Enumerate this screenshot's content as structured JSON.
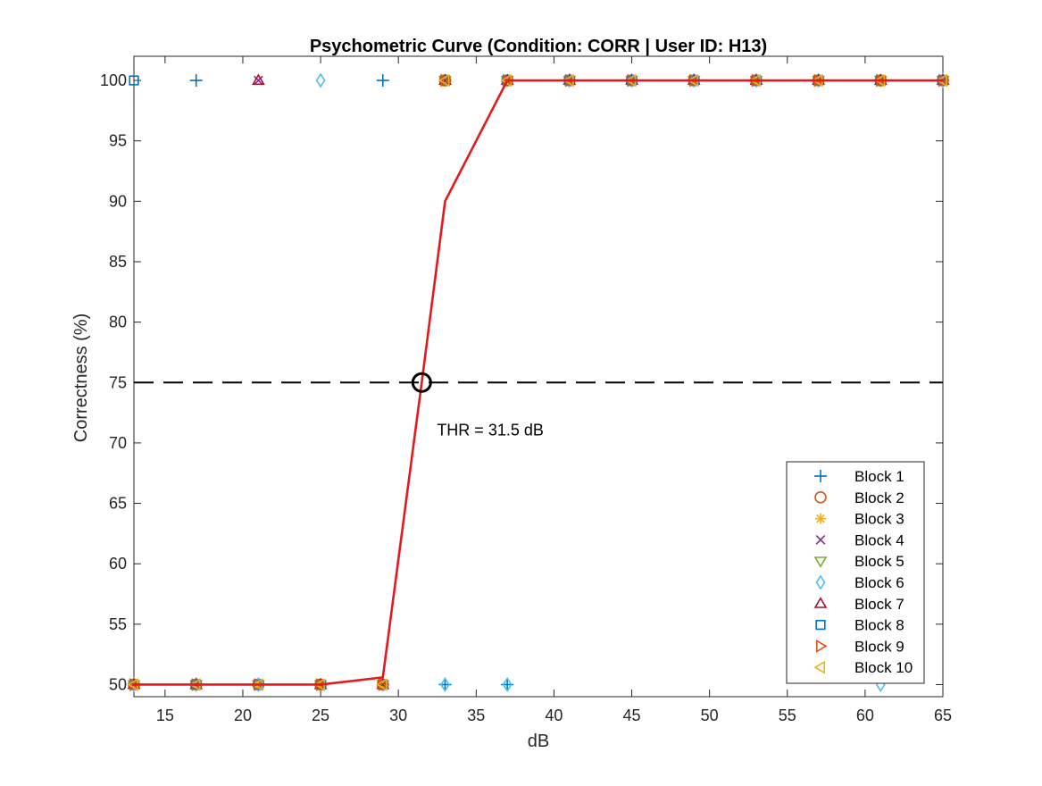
{
  "chart_data": {
    "type": "scatter",
    "title": "Psychometric Curve (Condition: CORR | User ID: H13)",
    "xlabel": "dB",
    "ylabel": "Correctness (%)",
    "xlim": [
      13,
      65
    ],
    "ylim": [
      49,
      102
    ],
    "xticks": [
      15,
      20,
      25,
      30,
      35,
      40,
      45,
      50,
      55,
      60,
      65
    ],
    "yticks": [
      50,
      55,
      60,
      65,
      70,
      75,
      80,
      85,
      90,
      95,
      100
    ],
    "grid": false,
    "legend_position": "bottom-right",
    "threshold": {
      "x": 31.5,
      "y": 75,
      "label": "THR = 31.5 dB",
      "line_color": "#000000"
    },
    "curve": {
      "color": "#e31a1c",
      "x": [
        13,
        17,
        21,
        25,
        29,
        31.5,
        33,
        37,
        41,
        45,
        49,
        53,
        57,
        61,
        65
      ],
      "y": [
        50,
        50,
        50,
        50,
        50.6,
        75,
        90,
        100,
        100,
        100,
        100,
        100,
        100,
        100,
        100
      ]
    },
    "series": [
      {
        "name": "Block 1",
        "marker": "plus",
        "color": "#0072bd",
        "x": [
          13,
          17,
          21,
          25,
          29,
          33,
          37,
          41,
          45,
          49,
          53,
          57,
          61,
          65
        ],
        "y": [
          50,
          100,
          50,
          50,
          100,
          50,
          50,
          100,
          100,
          100,
          100,
          100,
          100,
          100
        ]
      },
      {
        "name": "Block 2",
        "marker": "circle",
        "color": "#d95319",
        "x": [
          13,
          17,
          21,
          25,
          29,
          33,
          37,
          41,
          45,
          49,
          53,
          57,
          61,
          65
        ],
        "y": [
          50,
          50,
          50,
          50,
          50,
          100,
          100,
          100,
          100,
          100,
          100,
          100,
          100,
          100
        ]
      },
      {
        "name": "Block 3",
        "marker": "asterisk",
        "color": "#edb120",
        "x": [
          13,
          17,
          21,
          25,
          29,
          33,
          37,
          41,
          45,
          49,
          53,
          57,
          61,
          65
        ],
        "y": [
          50,
          50,
          50,
          50,
          50,
          100,
          100,
          100,
          100,
          100,
          100,
          100,
          100,
          100
        ]
      },
      {
        "name": "Block 4",
        "marker": "x",
        "color": "#7e2f8e",
        "x": [
          13,
          17,
          21,
          25,
          29,
          33,
          37,
          41,
          45,
          49,
          53,
          57,
          61,
          65
        ],
        "y": [
          50,
          50,
          100,
          50,
          50,
          100,
          100,
          100,
          100,
          100,
          100,
          100,
          100,
          100
        ]
      },
      {
        "name": "Block 5",
        "marker": "triangle-down",
        "color": "#77ac30",
        "x": [
          13,
          17,
          21,
          25,
          29,
          33,
          37,
          41,
          45,
          49,
          53,
          57,
          61,
          65
        ],
        "y": [
          50,
          50,
          50,
          50,
          50,
          100,
          100,
          100,
          100,
          100,
          100,
          100,
          100,
          100
        ]
      },
      {
        "name": "Block 6",
        "marker": "diamond",
        "color": "#4dbeee",
        "x": [
          13,
          17,
          21,
          25,
          29,
          33,
          37,
          41,
          45,
          49,
          53,
          57,
          61,
          65
        ],
        "y": [
          50,
          50,
          50,
          100,
          50,
          50,
          50,
          100,
          100,
          100,
          100,
          100,
          50,
          100
        ]
      },
      {
        "name": "Block 7",
        "marker": "triangle-up",
        "color": "#a2142f",
        "x": [
          13,
          17,
          21,
          25,
          29,
          33,
          37,
          41,
          45,
          49,
          53,
          57,
          61,
          65
        ],
        "y": [
          50,
          50,
          100,
          50,
          50,
          100,
          100,
          100,
          100,
          100,
          100,
          100,
          100,
          100
        ]
      },
      {
        "name": "Block 8",
        "marker": "square",
        "color": "#0072bd",
        "x": [
          13,
          17,
          21,
          25,
          29,
          33,
          37,
          41,
          45,
          49,
          53,
          57,
          61,
          65
        ],
        "y": [
          100,
          50,
          50,
          50,
          50,
          100,
          100,
          100,
          100,
          100,
          100,
          100,
          100,
          100
        ]
      },
      {
        "name": "Block 9",
        "marker": "triangle-right",
        "color": "#d95319",
        "x": [
          13,
          17,
          21,
          25,
          29,
          33,
          37,
          41,
          45,
          49,
          53,
          57,
          61,
          65
        ],
        "y": [
          50,
          50,
          50,
          50,
          50,
          100,
          100,
          100,
          100,
          100,
          100,
          100,
          100,
          100
        ]
      },
      {
        "name": "Block 10",
        "marker": "triangle-left",
        "color": "#edb120",
        "x": [
          13,
          17,
          21,
          25,
          29,
          33,
          37,
          41,
          45,
          49,
          53,
          57,
          61,
          65
        ],
        "y": [
          50,
          50,
          50,
          50,
          50,
          100,
          100,
          100,
          100,
          100,
          100,
          100,
          100,
          100
        ]
      }
    ]
  }
}
